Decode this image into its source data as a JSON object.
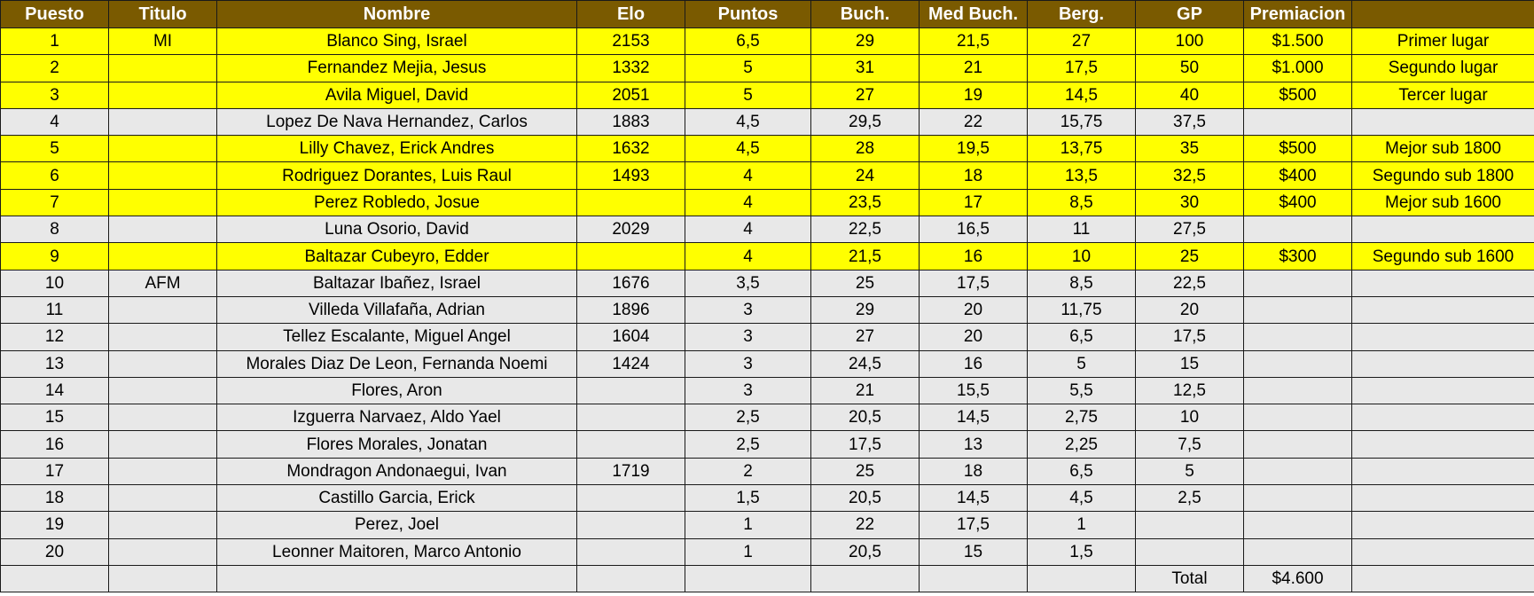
{
  "columns": [
    "Puesto",
    "Titulo",
    "Nombre",
    "Elo",
    "Puntos",
    "Buch.",
    "Med Buch.",
    "Berg.",
    "GP",
    "Premiacion",
    ""
  ],
  "rows": [
    {
      "puesto": "1",
      "titulo": "MI",
      "nombre": "Blanco Sing, Israel",
      "elo": "2153",
      "puntos": "6,5",
      "buch": "29",
      "med_buch": "21,5",
      "berg": "27",
      "gp": "100",
      "premiacion": "$1.500",
      "lugar": "Primer lugar",
      "highlight": true
    },
    {
      "puesto": "2",
      "titulo": "",
      "nombre": "Fernandez Mejia, Jesus",
      "elo": "1332",
      "puntos": "5",
      "buch": "31",
      "med_buch": "21",
      "berg": "17,5",
      "gp": "50",
      "premiacion": "$1.000",
      "lugar": "Segundo lugar",
      "highlight": true
    },
    {
      "puesto": "3",
      "titulo": "",
      "nombre": "Avila Miguel, David",
      "elo": "2051",
      "puntos": "5",
      "buch": "27",
      "med_buch": "19",
      "berg": "14,5",
      "gp": "40",
      "premiacion": "$500",
      "lugar": "Tercer lugar",
      "highlight": true
    },
    {
      "puesto": "4",
      "titulo": "",
      "nombre": "Lopez De Nava Hernandez, Carlos",
      "elo": "1883",
      "puntos": "4,5",
      "buch": "29,5",
      "med_buch": "22",
      "berg": "15,75",
      "gp": "37,5",
      "premiacion": "",
      "lugar": "",
      "highlight": false
    },
    {
      "puesto": "5",
      "titulo": "",
      "nombre": "Lilly Chavez, Erick Andres",
      "elo": "1632",
      "puntos": "4,5",
      "buch": "28",
      "med_buch": "19,5",
      "berg": "13,75",
      "gp": "35",
      "premiacion": "$500",
      "lugar": "Mejor sub 1800",
      "highlight": true
    },
    {
      "puesto": "6",
      "titulo": "",
      "nombre": "Rodriguez Dorantes, Luis Raul",
      "elo": "1493",
      "puntos": "4",
      "buch": "24",
      "med_buch": "18",
      "berg": "13,5",
      "gp": "32,5",
      "premiacion": "$400",
      "lugar": "Segundo sub 1800",
      "highlight": true
    },
    {
      "puesto": "7",
      "titulo": "",
      "nombre": "Perez Robledo, Josue",
      "elo": "",
      "puntos": "4",
      "buch": "23,5",
      "med_buch": "17",
      "berg": "8,5",
      "gp": "30",
      "premiacion": "$400",
      "lugar": "Mejor sub 1600",
      "highlight": true
    },
    {
      "puesto": "8",
      "titulo": "",
      "nombre": "Luna Osorio, David",
      "elo": "2029",
      "puntos": "4",
      "buch": "22,5",
      "med_buch": "16,5",
      "berg": "11",
      "gp": "27,5",
      "premiacion": "",
      "lugar": "",
      "highlight": false
    },
    {
      "puesto": "9",
      "titulo": "",
      "nombre": "Baltazar Cubeyro, Edder",
      "elo": "",
      "puntos": "4",
      "buch": "21,5",
      "med_buch": "16",
      "berg": "10",
      "gp": "25",
      "premiacion": "$300",
      "lugar": "Segundo sub 1600",
      "highlight": true
    },
    {
      "puesto": "10",
      "titulo": "AFM",
      "nombre": "Baltazar Ibañez, Israel",
      "elo": "1676",
      "puntos": "3,5",
      "buch": "25",
      "med_buch": "17,5",
      "berg": "8,5",
      "gp": "22,5",
      "premiacion": "",
      "lugar": "",
      "highlight": false
    },
    {
      "puesto": "11",
      "titulo": "",
      "nombre": "Villeda Villafaña, Adrian",
      "elo": "1896",
      "puntos": "3",
      "buch": "29",
      "med_buch": "20",
      "berg": "11,75",
      "gp": "20",
      "premiacion": "",
      "lugar": "",
      "highlight": false
    },
    {
      "puesto": "12",
      "titulo": "",
      "nombre": "Tellez Escalante, Miguel Angel",
      "elo": "1604",
      "puntos": "3",
      "buch": "27",
      "med_buch": "20",
      "berg": "6,5",
      "gp": "17,5",
      "premiacion": "",
      "lugar": "",
      "highlight": false
    },
    {
      "puesto": "13",
      "titulo": "",
      "nombre": "Morales Diaz De Leon, Fernanda Noemi",
      "elo": "1424",
      "puntos": "3",
      "buch": "24,5",
      "med_buch": "16",
      "berg": "5",
      "gp": "15",
      "premiacion": "",
      "lugar": "",
      "highlight": false
    },
    {
      "puesto": "14",
      "titulo": "",
      "nombre": "Flores, Aron",
      "elo": "",
      "puntos": "3",
      "buch": "21",
      "med_buch": "15,5",
      "berg": "5,5",
      "gp": "12,5",
      "premiacion": "",
      "lugar": "",
      "highlight": false
    },
    {
      "puesto": "15",
      "titulo": "",
      "nombre": "Izguerra Narvaez, Aldo Yael",
      "elo": "",
      "puntos": "2,5",
      "buch": "20,5",
      "med_buch": "14,5",
      "berg": "2,75",
      "gp": "10",
      "premiacion": "",
      "lugar": "",
      "highlight": false
    },
    {
      "puesto": "16",
      "titulo": "",
      "nombre": "Flores Morales, Jonatan",
      "elo": "",
      "puntos": "2,5",
      "buch": "17,5",
      "med_buch": "13",
      "berg": "2,25",
      "gp": "7,5",
      "premiacion": "",
      "lugar": "",
      "highlight": false
    },
    {
      "puesto": "17",
      "titulo": "",
      "nombre": "Mondragon Andonaegui, Ivan",
      "elo": "1719",
      "puntos": "2",
      "buch": "25",
      "med_buch": "18",
      "berg": "6,5",
      "gp": "5",
      "premiacion": "",
      "lugar": "",
      "highlight": false
    },
    {
      "puesto": "18",
      "titulo": "",
      "nombre": "Castillo Garcia, Erick",
      "elo": "",
      "puntos": "1,5",
      "buch": "20,5",
      "med_buch": "14,5",
      "berg": "4,5",
      "gp": "2,5",
      "premiacion": "",
      "lugar": "",
      "highlight": false
    },
    {
      "puesto": "19",
      "titulo": "",
      "nombre": "Perez, Joel",
      "elo": "",
      "puntos": "1",
      "buch": "22",
      "med_buch": "17,5",
      "berg": "1",
      "gp": "",
      "premiacion": "",
      "lugar": "",
      "highlight": false
    },
    {
      "puesto": "20",
      "titulo": "",
      "nombre": "Leonner Maitoren, Marco Antonio",
      "elo": "",
      "puntos": "1",
      "buch": "20,5",
      "med_buch": "15",
      "berg": "1,5",
      "gp": "",
      "premiacion": "",
      "lugar": "",
      "highlight": false
    }
  ],
  "total": {
    "label": "Total",
    "value": "$4.600"
  },
  "colors": {
    "header_bg": "#7a5a00",
    "header_text": "#ffffff",
    "highlight_bg": "#ffff00",
    "plain_bg": "#e8e8e8"
  }
}
